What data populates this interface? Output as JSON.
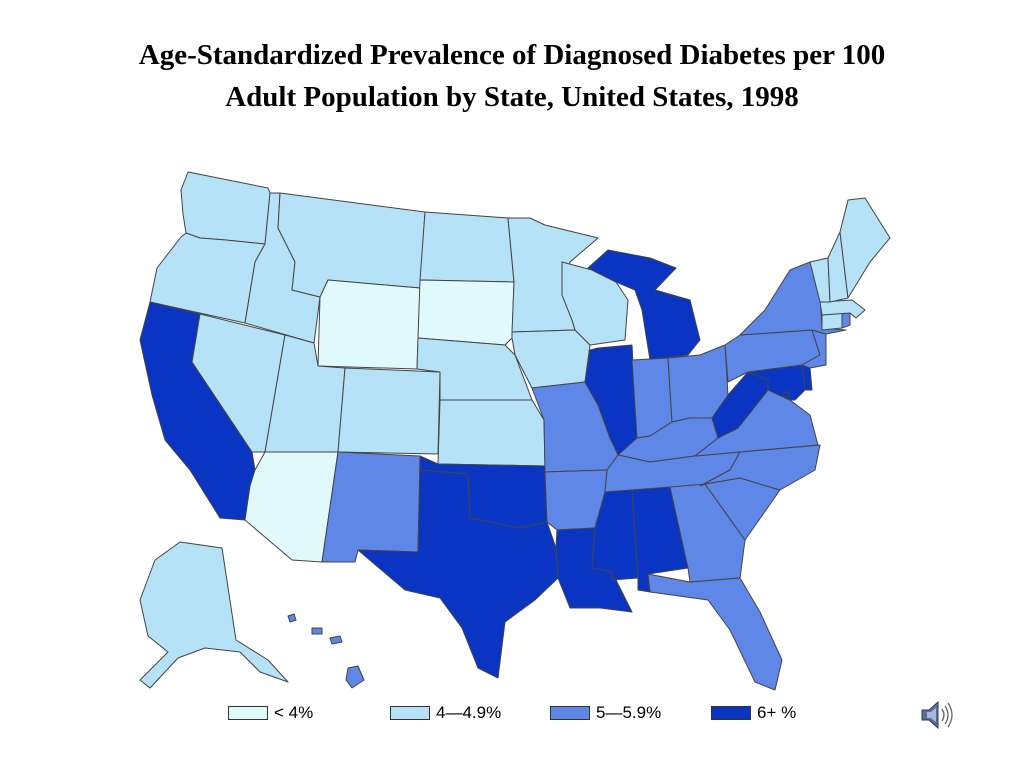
{
  "title": {
    "line1": "Age-Standardized Prevalence of Diagnosed Diabetes per 100",
    "line2": "Adult Population by State, United States, 1998"
  },
  "colors": {
    "lt4": "#e0fafc",
    "c4to49": "#b5e2f7",
    "c5to59": "#5e87e8",
    "c6plus": "#0935c2",
    "border": "#444444"
  },
  "legend": [
    {
      "key": "lt4",
      "label": "< 4%"
    },
    {
      "key": "c4to49",
      "label": "4—4.9%"
    },
    {
      "key": "c5to59",
      "label": "5—5.9%"
    },
    {
      "key": "c6plus",
      "label": "6+ %"
    }
  ],
  "states": {
    "WA": "c4to49",
    "OR": "c4to49",
    "CA": "c6plus",
    "NV": "c4to49",
    "ID": "c4to49",
    "MT": "c4to49",
    "WY": "lt4",
    "UT": "c4to49",
    "AZ": "lt4",
    "CO": "c4to49",
    "NM": "c5to59",
    "ND": "c4to49",
    "SD": "lt4",
    "NE": "c4to49",
    "KS": "c4to49",
    "OK": "c6plus",
    "TX": "c6plus",
    "MN": "c4to49",
    "IA": "c4to49",
    "MO": "c5to59",
    "AR": "c5to59",
    "LA": "c6plus",
    "WI": "c4to49",
    "IL": "c6plus",
    "MI": "c6plus",
    "IN": "c5to59",
    "OH": "c5to59",
    "KY": "c5to59",
    "TN": "c5to59",
    "MS": "c6plus",
    "AL": "c6plus",
    "GA": "c5to59",
    "FL": "c5to59",
    "SC": "c5to59",
    "NC": "c5to59",
    "VA": "c5to59",
    "WV": "c6plus",
    "MD": "c6plus",
    "DE": "c6plus",
    "NJ": "c5to59",
    "PA": "c5to59",
    "NY": "c5to59",
    "CT": "c4to49",
    "RI": "c5to59",
    "MA": "c4to49",
    "VT": "c4to49",
    "NH": "c4to49",
    "ME": "c4to49",
    "AK": "c4to49",
    "HI": "c5to59",
    "DC": "c6plus"
  },
  "audio": {
    "icon": "speaker-icon"
  }
}
